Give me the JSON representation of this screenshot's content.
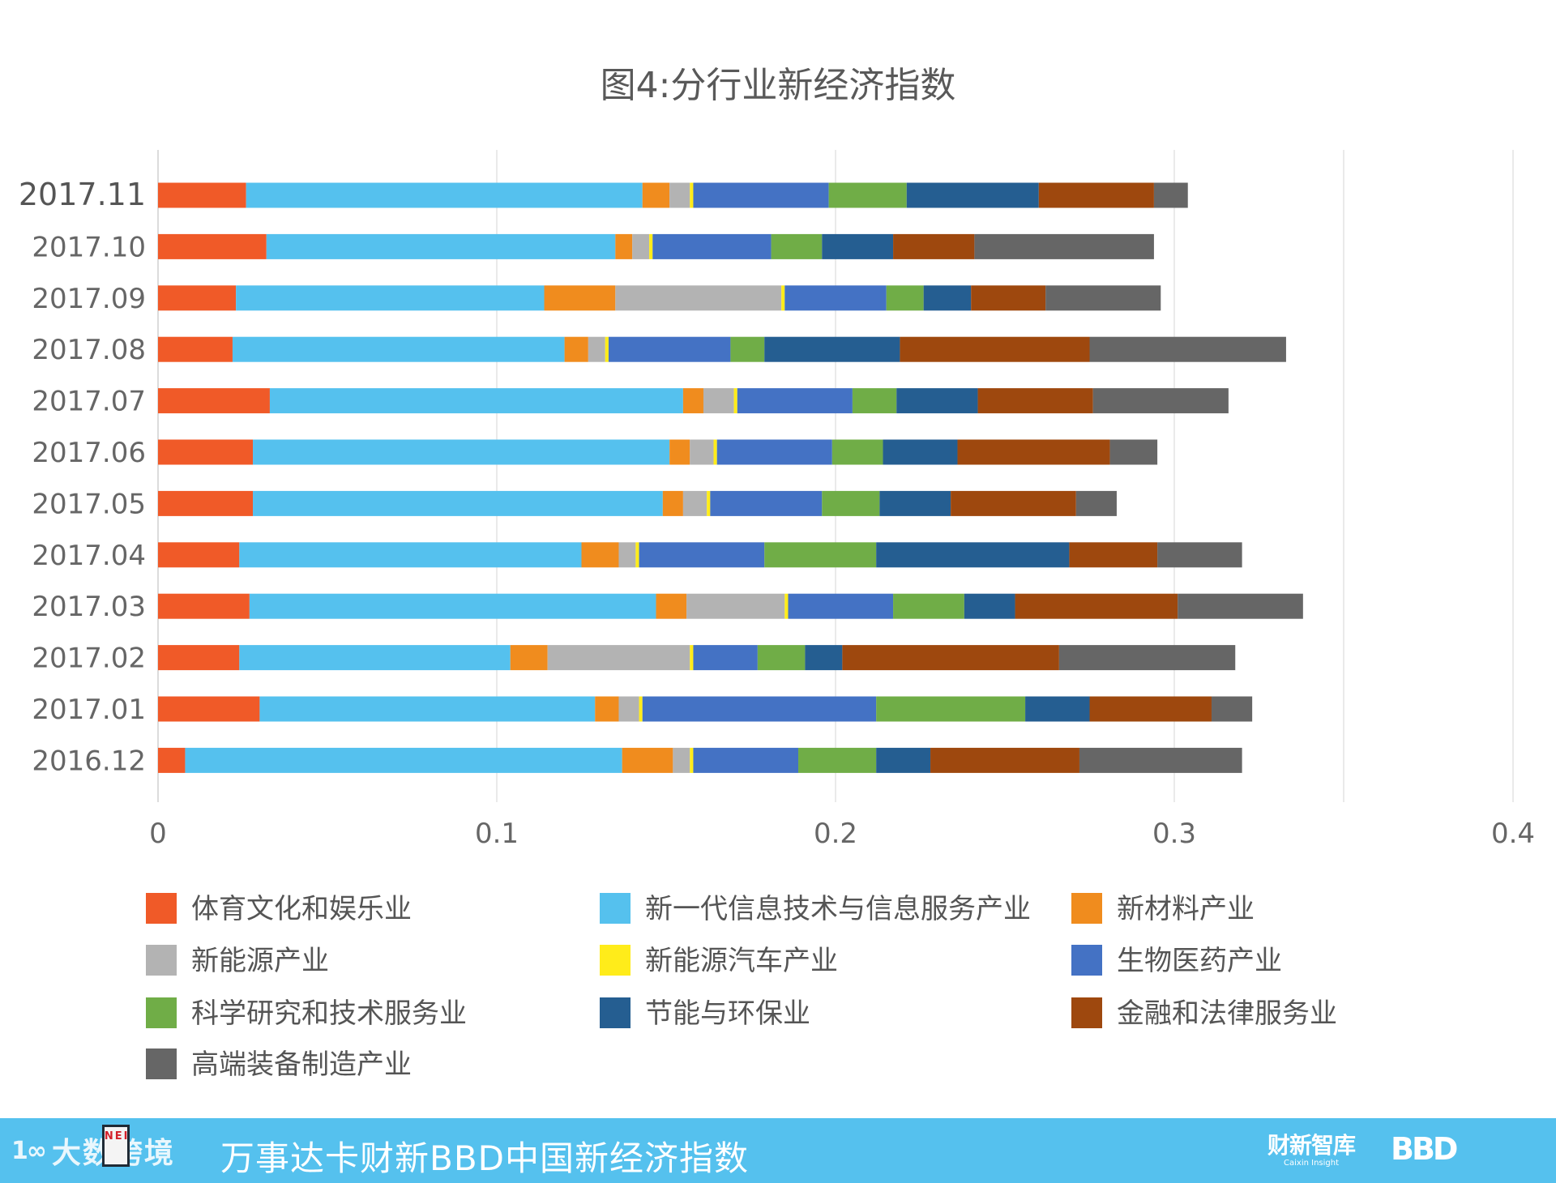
{
  "chart_data": {
    "type": "bar",
    "orientation": "horizontal",
    "stacked": true,
    "title": "图4:分行业新经济指数",
    "categories": [
      "2017.11",
      "2017.10",
      "2017.09",
      "2017.08",
      "2017.07",
      "2017.06",
      "2017.05",
      "2017.04",
      "2017.03",
      "2017.02",
      "2017.01",
      "2016.12"
    ],
    "xlim": [
      0,
      0.4
    ],
    "xticks": [
      "0",
      "0.1",
      "0.2",
      "0.3",
      "0.4"
    ],
    "xtick_values": [
      0,
      0.1,
      0.2,
      0.3,
      0.4
    ],
    "grid": true,
    "legend_position": "bottom",
    "series": [
      {
        "name": "体育文化和娱乐业",
        "color": "#f05a28",
        "values": [
          0.026,
          0.032,
          0.023,
          0.022,
          0.033,
          0.028,
          0.028,
          0.024,
          0.027,
          0.024,
          0.03,
          0.008
        ]
      },
      {
        "name": "新一代信息技术与信息服务产业",
        "color": "#55c1ee",
        "values": [
          0.117,
          0.103,
          0.091,
          0.098,
          0.122,
          0.123,
          0.121,
          0.101,
          0.12,
          0.08,
          0.099,
          0.129
        ]
      },
      {
        "name": "新材料产业",
        "color": "#f08c1e",
        "values": [
          0.008,
          0.005,
          0.021,
          0.007,
          0.006,
          0.006,
          0.006,
          0.011,
          0.009,
          0.011,
          0.007,
          0.015
        ]
      },
      {
        "name": "新能源产业",
        "color": "#b3b3b3",
        "values": [
          0.006,
          0.005,
          0.049,
          0.005,
          0.009,
          0.007,
          0.007,
          0.005,
          0.029,
          0.042,
          0.006,
          0.005
        ]
      },
      {
        "name": "新能源汽车产业",
        "color": "#ffec1a",
        "values": [
          0.001,
          0.001,
          0.001,
          0.001,
          0.001,
          0.001,
          0.001,
          0.001,
          0.001,
          0.001,
          0.001,
          0.001
        ]
      },
      {
        "name": "生物医药产业",
        "color": "#4472c4",
        "values": [
          0.04,
          0.035,
          0.03,
          0.036,
          0.034,
          0.034,
          0.033,
          0.037,
          0.031,
          0.019,
          0.069,
          0.031
        ]
      },
      {
        "name": "科学研究和技术服务业",
        "color": "#70ad47",
        "values": [
          0.023,
          0.015,
          0.011,
          0.01,
          0.013,
          0.015,
          0.017,
          0.033,
          0.021,
          0.014,
          0.044,
          0.023
        ]
      },
      {
        "name": "节能与环保业",
        "color": "#255e91",
        "values": [
          0.039,
          0.021,
          0.014,
          0.04,
          0.024,
          0.022,
          0.021,
          0.057,
          0.015,
          0.011,
          0.019,
          0.016
        ]
      },
      {
        "name": "金融和法律服务业",
        "color": "#9e480e",
        "values": [
          0.034,
          0.024,
          0.022,
          0.056,
          0.034,
          0.045,
          0.037,
          0.026,
          0.048,
          0.064,
          0.036,
          0.044
        ]
      },
      {
        "name": "高端装备制造产业",
        "color": "#666666",
        "values": [
          0.01,
          0.053,
          0.034,
          0.058,
          0.04,
          0.014,
          0.012,
          0.025,
          0.037,
          0.052,
          0.012,
          0.048
        ]
      }
    ]
  },
  "footer": {
    "logo_glyph": "1∞",
    "logo_text": "大数跨境",
    "badge_text": "NEI",
    "title": "万事达卡财新BBD中国新经济指数",
    "caixin_main": "财新智库",
    "caixin_sub": "Caixin Insight",
    "bbd": "BBD"
  },
  "colors": {
    "footer_bg": "#55c1ee",
    "grid": "#e3e3e3",
    "axis_text": "#666666",
    "title_text": "#595959"
  }
}
